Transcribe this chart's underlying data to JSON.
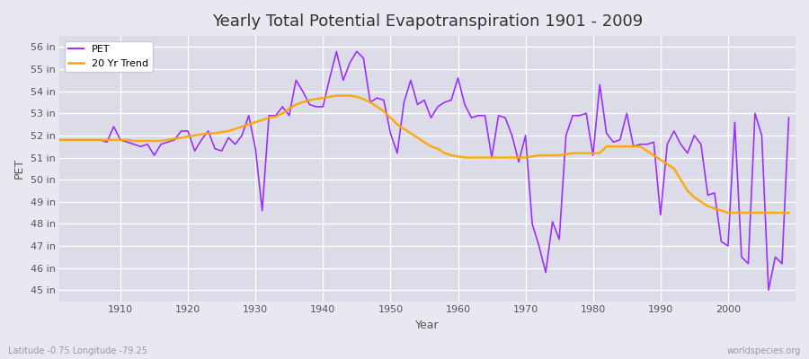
{
  "title": "Yearly Total Potential Evapotranspiration 1901 - 2009",
  "xlabel": "Year",
  "ylabel": "PET",
  "lat_lon_label": "Latitude -0.75 Longitude -79.25",
  "watermark": "worldspecies.org",
  "pet_color": "#9B30FF",
  "trend_color": "#FFA500",
  "bg_color": "#E8E8F0",
  "plot_bg_color": "#DCDCE8",
  "grid_color": "#FFFFFF",
  "ylim": [
    44.5,
    56.5
  ],
  "yticks": [
    45,
    46,
    47,
    48,
    49,
    50,
    51,
    52,
    53,
    54,
    55,
    56
  ],
  "ytick_labels": [
    "45 in",
    "46 in",
    "47 in",
    "48 in",
    "49 in",
    "50 in",
    "51 in",
    "52 in",
    "53 in",
    "54 in",
    "55 in",
    "56 in"
  ],
  "xlim": [
    1901,
    2010
  ],
  "xticks": [
    1910,
    1920,
    1930,
    1940,
    1950,
    1960,
    1970,
    1980,
    1990,
    2000
  ],
  "years": [
    1901,
    1902,
    1903,
    1904,
    1905,
    1906,
    1907,
    1908,
    1909,
    1910,
    1911,
    1912,
    1913,
    1914,
    1915,
    1916,
    1917,
    1918,
    1919,
    1920,
    1921,
    1922,
    1923,
    1924,
    1925,
    1926,
    1927,
    1928,
    1929,
    1930,
    1931,
    1932,
    1933,
    1934,
    1935,
    1936,
    1937,
    1938,
    1939,
    1940,
    1941,
    1942,
    1943,
    1944,
    1945,
    1946,
    1947,
    1948,
    1949,
    1950,
    1951,
    1952,
    1953,
    1954,
    1955,
    1956,
    1957,
    1958,
    1959,
    1960,
    1961,
    1962,
    1963,
    1964,
    1965,
    1966,
    1967,
    1968,
    1969,
    1970,
    1971,
    1972,
    1973,
    1974,
    1975,
    1976,
    1977,
    1978,
    1979,
    1980,
    1981,
    1982,
    1983,
    1984,
    1985,
    1986,
    1987,
    1988,
    1989,
    1990,
    1991,
    1992,
    1993,
    1994,
    1995,
    1996,
    1997,
    1998,
    1999,
    2000,
    2001,
    2002,
    2003,
    2004,
    2005,
    2006,
    2007,
    2008,
    2009
  ],
  "pet_values": [
    51.8,
    51.8,
    51.8,
    51.8,
    51.8,
    51.8,
    51.8,
    51.7,
    52.4,
    51.8,
    51.7,
    51.6,
    51.5,
    51.6,
    51.1,
    51.6,
    51.7,
    51.8,
    52.2,
    52.2,
    51.3,
    51.8,
    52.2,
    51.4,
    51.3,
    51.9,
    51.6,
    52.0,
    52.9,
    51.4,
    48.6,
    52.9,
    52.9,
    53.3,
    52.9,
    54.5,
    54.0,
    53.4,
    53.3,
    53.3,
    54.6,
    55.8,
    54.5,
    55.3,
    55.8,
    55.5,
    53.5,
    53.7,
    53.6,
    52.1,
    51.2,
    53.5,
    54.5,
    53.4,
    53.6,
    52.8,
    53.3,
    53.5,
    53.6,
    54.6,
    53.4,
    52.8,
    52.9,
    52.9,
    51.0,
    52.9,
    52.8,
    52.0,
    50.8,
    52.0,
    48.0,
    47.0,
    45.8,
    48.1,
    47.3,
    52.0,
    52.9,
    52.9,
    53.0,
    51.1,
    54.3,
    52.1,
    51.7,
    51.8,
    53.0,
    51.5,
    51.6,
    51.6,
    51.7,
    48.4,
    51.6,
    52.2,
    51.6,
    51.2,
    52.0,
    51.6,
    49.3,
    49.4,
    47.2,
    47.0,
    52.6,
    46.5,
    46.2,
    53.0,
    52.0,
    45.0,
    46.5,
    46.2,
    52.8
  ],
  "trend_values": [
    51.8,
    51.8,
    51.8,
    51.8,
    51.8,
    51.8,
    51.8,
    51.8,
    51.8,
    51.8,
    51.8,
    51.75,
    51.75,
    51.75,
    51.75,
    51.75,
    51.8,
    51.85,
    51.9,
    51.95,
    52.0,
    52.05,
    52.1,
    52.1,
    52.15,
    52.2,
    52.3,
    52.4,
    52.5,
    52.6,
    52.7,
    52.8,
    52.85,
    53.0,
    53.2,
    53.4,
    53.5,
    53.6,
    53.65,
    53.7,
    53.75,
    53.8,
    53.8,
    53.8,
    53.75,
    53.65,
    53.5,
    53.3,
    53.1,
    52.8,
    52.5,
    52.3,
    52.1,
    51.9,
    51.7,
    51.5,
    51.4,
    51.2,
    51.1,
    51.05,
    51.0,
    51.0,
    51.0,
    51.0,
    51.0,
    51.0,
    51.0,
    51.0,
    51.0,
    51.0,
    51.05,
    51.1,
    51.1,
    51.1,
    51.1,
    51.15,
    51.2,
    51.2,
    51.2,
    51.2,
    51.2,
    51.5,
    51.5,
    51.5,
    51.5,
    51.5,
    51.5,
    51.3,
    51.1,
    50.9,
    50.7,
    50.5,
    50.0,
    49.5,
    49.2,
    49.0,
    48.8,
    48.7,
    48.6,
    48.5,
    48.5,
    48.5,
    48.5,
    48.5,
    48.5,
    48.5,
    48.5,
    48.5,
    48.5
  ]
}
